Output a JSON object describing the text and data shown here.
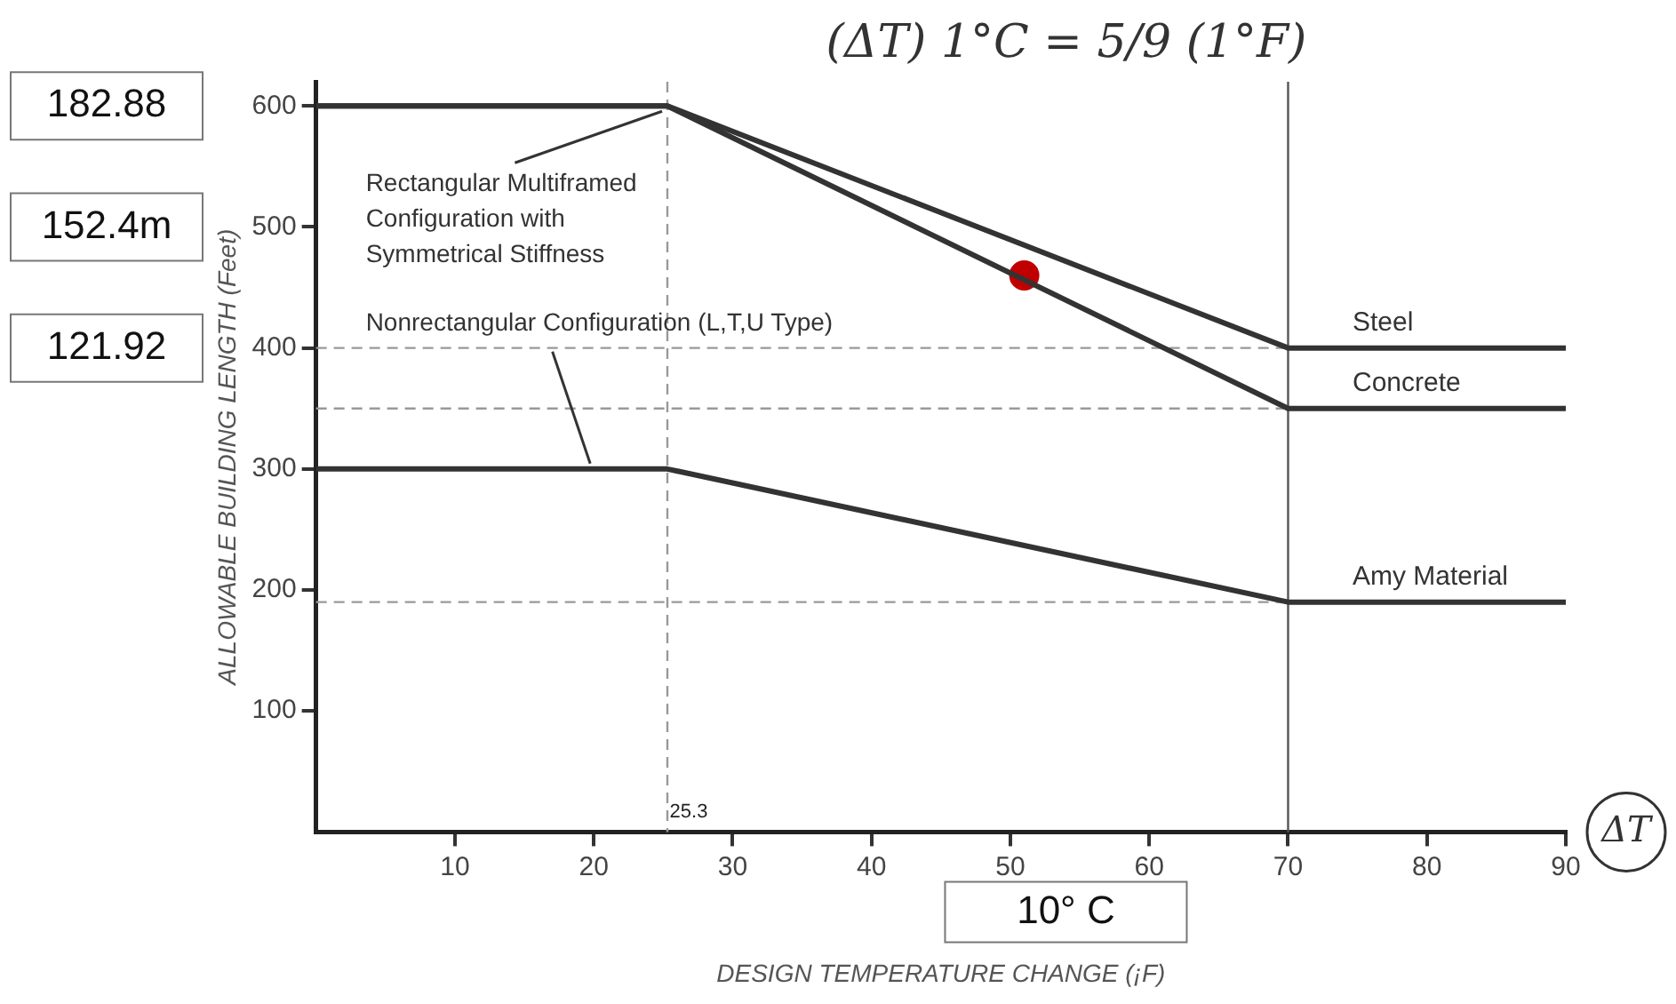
{
  "chart_data": {
    "type": "line",
    "xlabel": "DESIGN TEMPERATURE CHANGE (¡F)",
    "ylabel": "ALLOWABLE BUILDING LENGTH (Feet)",
    "x": [
      0,
      25.3,
      70,
      90
    ],
    "series": [
      {
        "name": "Steel",
        "color": "#333333",
        "values": [
          600,
          600,
          400,
          400
        ]
      },
      {
        "name": "Concrete",
        "color": "#333333",
        "values": [
          600,
          600,
          350,
          350
        ]
      },
      {
        "name": "Amy Material",
        "color": "#333333",
        "values": [
          300,
          300,
          190,
          190
        ]
      },
      {
        "type": "scatter",
        "color": "#c00000",
        "x": [
          51
        ],
        "values": [
          460
        ],
        "marker": "circle"
      }
    ],
    "xlim": [
      0,
      90
    ],
    "xticks": [
      10,
      20,
      30,
      40,
      50,
      60,
      70,
      80,
      90
    ],
    "ylim": [
      0,
      620
    ],
    "yticks": [
      100,
      200,
      300,
      400,
      500,
      600
    ],
    "marker": "none",
    "line_style": "solid",
    "grid": false,
    "legend": false,
    "ref_lines": [
      {
        "axis": "y",
        "value": 400,
        "color": "#999999",
        "line_style": "dashed"
      },
      {
        "axis": "y",
        "value": 350,
        "color": "#999999",
        "line_style": "dashed"
      },
      {
        "axis": "y",
        "value": 190,
        "color": "#999999",
        "line_style": "dashed"
      },
      {
        "axis": "x",
        "value": 25.3,
        "label": "25.3",
        "color": "#999999",
        "line_style": "dashed"
      },
      {
        "axis": "x",
        "value": 70,
        "color": "#555555",
        "line_style": "solid"
      }
    ],
    "annotations": [
      {
        "text": "Rectangular Multiframed\nConfiguration with\nSymmetrical Stiffness",
        "x": 25.3,
        "y": 600
      },
      {
        "text": "Nonrectangular Configuration (L,T,U Type)",
        "x": 20,
        "y": 300
      },
      "(ΔT) 1°C = 5/9 (1°F)",
      "ΔT",
      "182.88",
      "152.4m",
      "121.92",
      "10° C"
    ]
  }
}
